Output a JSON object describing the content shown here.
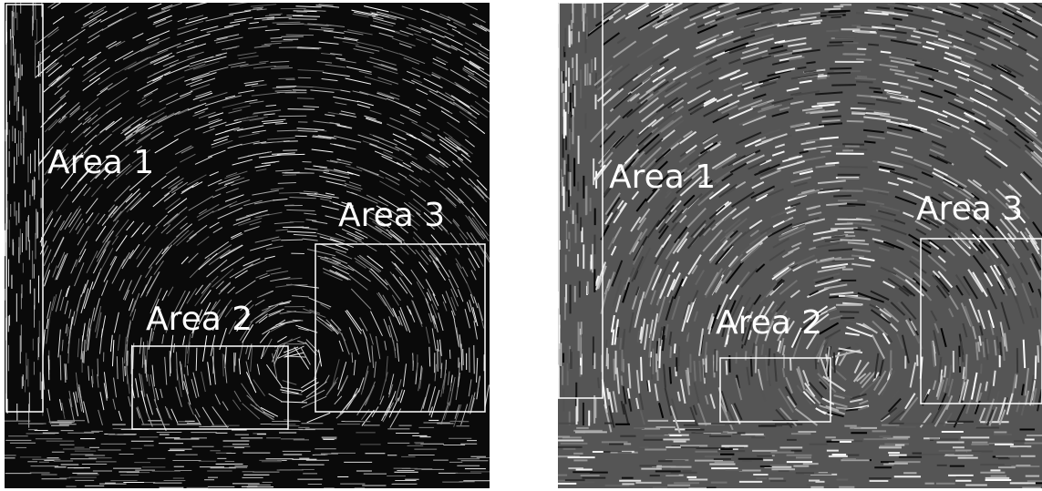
{
  "panels": [
    {
      "labels": [
        "Area 1",
        "Area 2",
        "Area 3"
      ]
    },
    {
      "labels": [
        "Area 1",
        "Area 2",
        "Area 3"
      ]
    }
  ]
}
